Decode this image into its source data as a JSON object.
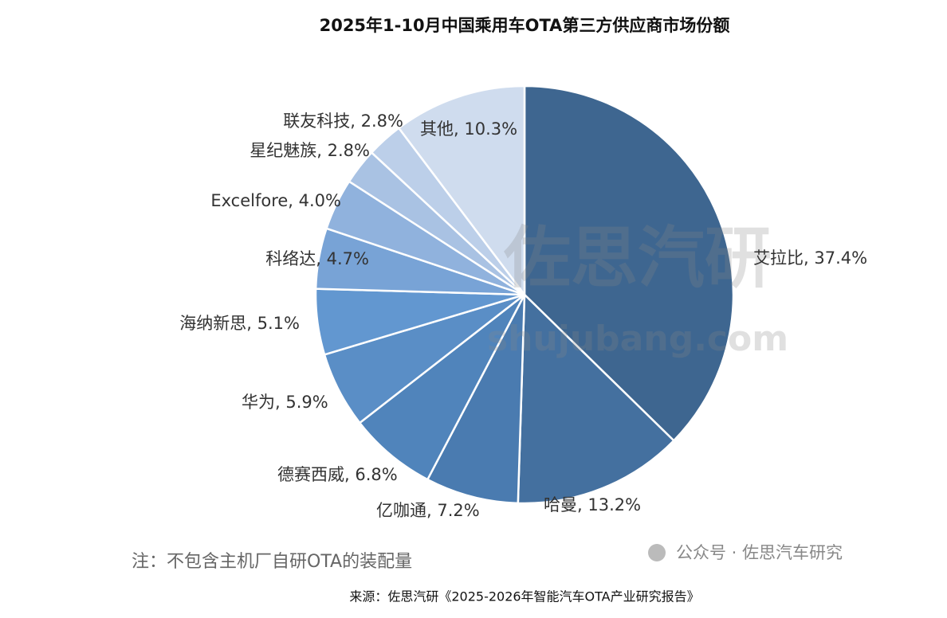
{
  "chart_data": {
    "type": "pie",
    "title": "2025年1-10月中国乘用车OTA第三方供应商市场份额",
    "values": [
      37.4,
      13.2,
      7.2,
      6.8,
      5.9,
      5.1,
      4.7,
      4.0,
      2.8,
      2.8,
      10.3
    ],
    "value_labels": [
      "艾拉比, 37.4%",
      "哈曼, 13.2%",
      "亿咖通, 7.2%",
      "德赛西威, 6.8%",
      "华为, 5.9%",
      "海纳新思, 5.1%",
      "科络达, 4.7%",
      "Excelfore, 4.0%",
      "星纪魅族, 2.8%",
      "联友科技, 2.8%",
      "其他, 10.3%"
    ],
    "colors": [
      "#3e6690",
      "#44709f",
      "#4a7bb0",
      "#5084bb",
      "#5a8ec6",
      "#6297d0",
      "#78a3d6",
      "#90b2dd",
      "#a9c2e3",
      "#bccfe9",
      "#cfdcee"
    ],
    "note": "注：不包含主机厂自研OTA的装配量",
    "watermark": "佐思汽研",
    "watermark_url": "shujubang.com",
    "wechat": "公众号 · 佐思汽车研究",
    "source": "来源：佐思汽研《2025-2026年智能汽车OTA产业研究报告》"
  }
}
